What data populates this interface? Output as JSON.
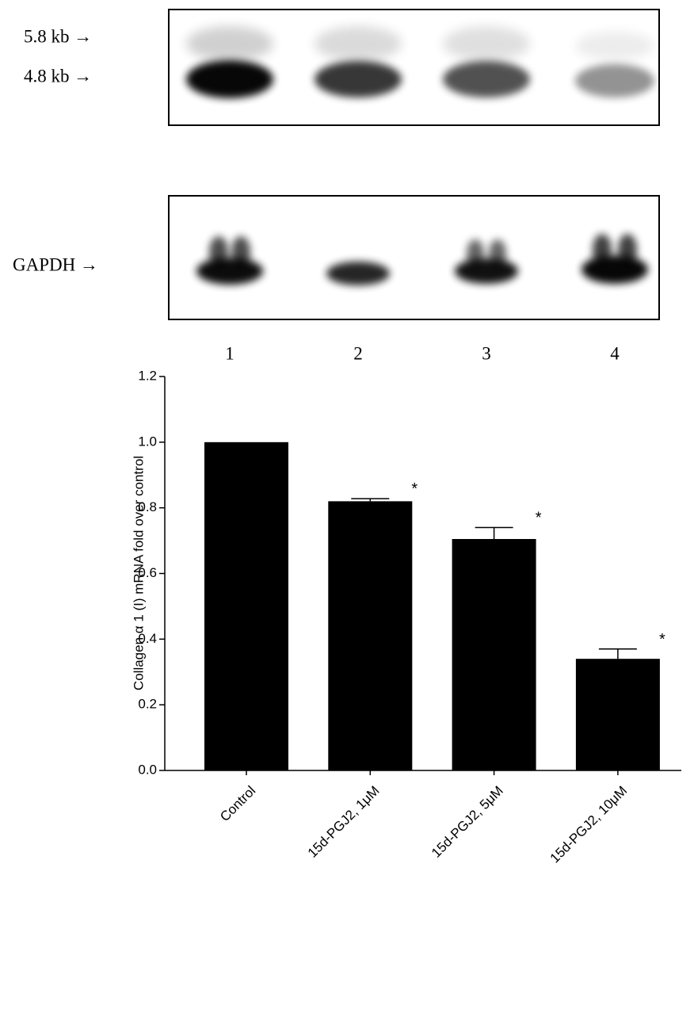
{
  "blot": {
    "bands": [
      "5.8 kb →",
      "4.8 kb →"
    ],
    "control": "GAPDH →",
    "lanes": [
      "1",
      "2",
      "3",
      "4"
    ]
  },
  "chart_data": {
    "type": "bar",
    "ylabel": "Collagen α 1 (I) mRNA fold over control",
    "categories": [
      "Control",
      "15d-PGJ2, 1μM",
      "15d-PGJ2, 5μM",
      "15d-PGJ2, 10μM"
    ],
    "values": [
      1.0,
      0.82,
      0.705,
      0.34
    ],
    "errors": [
      null,
      0.008,
      0.035,
      0.03
    ],
    "annotations": [
      null,
      "*",
      "*",
      "*"
    ],
    "color": "#000000",
    "ylim": [
      0,
      1.2
    ],
    "yticks": [
      {
        "value": 0,
        "label": "0.0"
      },
      {
        "value": 0.2,
        "label": "0.2"
      },
      {
        "value": 0.4,
        "label": "0.4"
      },
      {
        "value": 0.6,
        "label": "0.6"
      },
      {
        "value": 0.8,
        "label": "0.8"
      },
      {
        "value": 1.0,
        "label": "1.0"
      },
      {
        "value": 1.2,
        "label": "1.2"
      }
    ]
  }
}
